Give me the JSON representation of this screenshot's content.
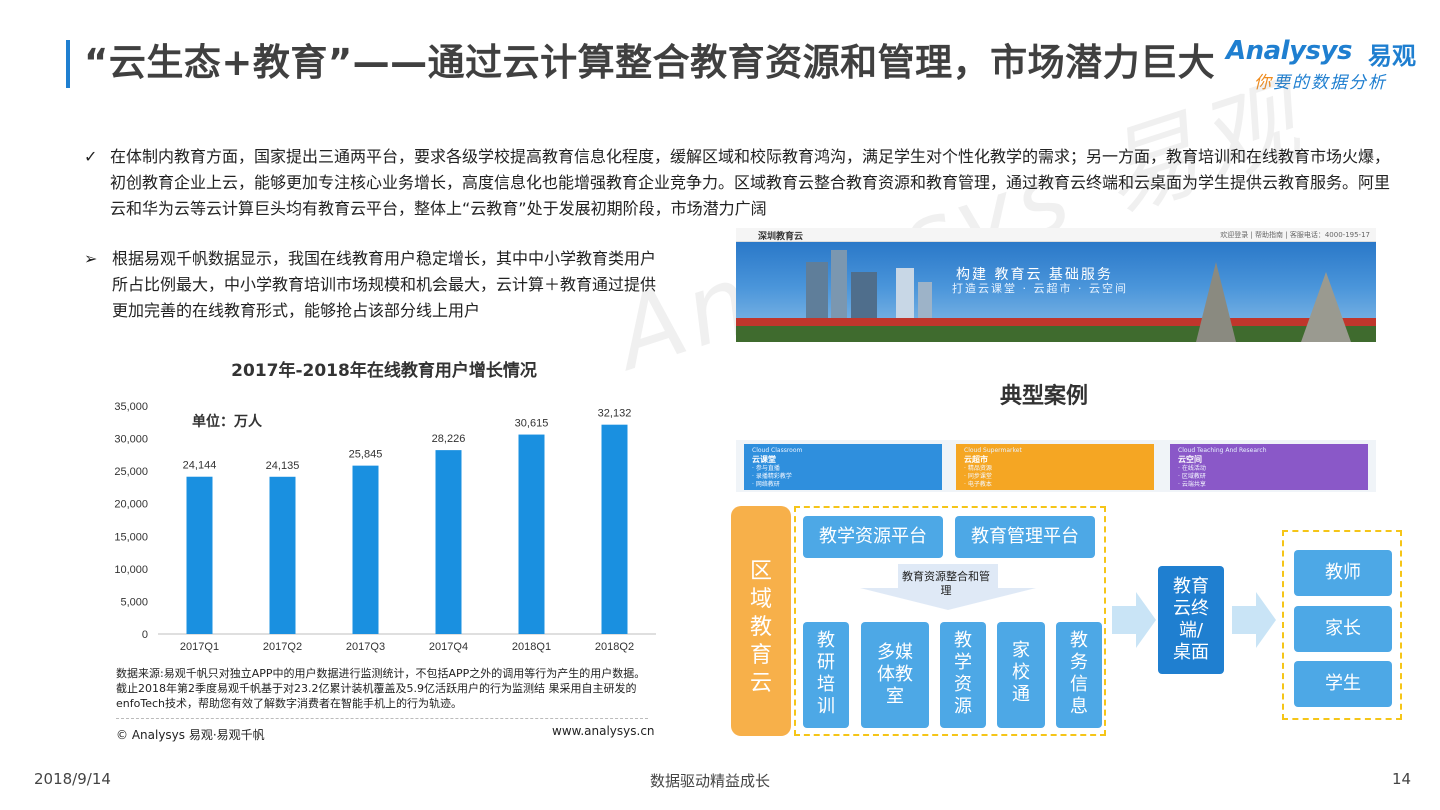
{
  "header": {
    "title": "“云生态+教育”——通过云计算整合教育资源和管理，市场潜力巨大",
    "logo_en": "Analysys",
    "logo_cn": "易观",
    "logo_tagline_first": "你",
    "logo_tagline_rest": "要的数据分析"
  },
  "intro": {
    "mark": "✓",
    "text": "在体制内教育方面，国家提出三通两平台，要求各级学校提高教育信息化程度，缓解区域和校际教育鸿沟，满足学生对个性化教学的需求；另一方面，教育培训和在线教育市场火爆，初创教育企业上云，能够更加专注核心业务增长，高度信息化也能增强教育企业竞争力。区域教育云整合教育资源和教育管理，通过教育云终端和云桌面为学生提供云教育服务。阿里云和华为云等云计算巨头均有教育云平台，整体上“云教育”处于发展初期阶段，市场潜力广阔"
  },
  "bullet": {
    "mark": "➢",
    "text": "根据易观千帆数据显示，我国在线教育用户稳定增长，其中中小学教育类用户所占比例最大，中小学教育培训市场规模和机会最大，云计算＋教育通过提供更加完善的在线教育形式，能够抢占该部分线上用户"
  },
  "chart_data": {
    "type": "bar",
    "title": "2017年-2018年在线教育用户增长情况",
    "unit_label": "单位：万人",
    "categories": [
      "2017Q1",
      "2017Q2",
      "2017Q3",
      "2017Q4",
      "2018Q1",
      "2018Q2"
    ],
    "values": [
      24144,
      24135,
      25845,
      28226,
      30615,
      32132
    ],
    "value_labels": [
      "24,144",
      "24,135",
      "25,845",
      "28,226",
      "30,615",
      "32,132"
    ],
    "yticks": [
      "0",
      "5,000",
      "10,000",
      "15,000",
      "20,000",
      "25,000",
      "30,000",
      "35,000"
    ],
    "ylim": [
      0,
      35000
    ],
    "bar_color": "#1a90e0",
    "grid": false
  },
  "source": {
    "text": "数据来源:易观千帆只对独立APP中的用户数据进行监测统计，不包括APP之外的调用等行为产生的用户数据。截止2018年第2季度易观千帆基于对23.2亿累计装机覆盖及5.9亿活跃用户的行为监测结 果采用自主研发的enfoTech技术，帮助您有效了解数字消费者在智能手机上的行为轨迹。",
    "copyright": "© Analysys 易观·易观千帆",
    "site": "www.analysys.cn"
  },
  "screenshot": {
    "brand": "深圳教育云",
    "links": "欢迎登录 | 帮助指南 | 客服电话：4000-195-17",
    "slogan": "构建 教育云 基础服务",
    "slogan2": "打造云课堂 · 云超市 · 云空间",
    "cards": [
      {
        "en": "Cloud Classroom",
        "cn": "云课堂",
        "items": [
          "· 参与直播",
          "· 录播精彩教学",
          "· 网络教研"
        ]
      },
      {
        "en": "Cloud Supermarket",
        "cn": "云超市",
        "items": [
          "· 精品资源",
          "· 同步课堂",
          "· 电子教本"
        ]
      },
      {
        "en": "Cloud Teaching And Research",
        "cn": "云空间",
        "items": [
          "· 在线活动",
          "· 区域教研",
          "· 云端共享"
        ]
      }
    ]
  },
  "case_title": "典型案例",
  "architecture": {
    "left_label": "区域教育云",
    "platforms": [
      "教学资源平台",
      "教育管理平台"
    ],
    "hint": "教育资源整合和管理",
    "modules": [
      "教研培训",
      "多媒体教室",
      "教学资源",
      "家校通",
      "教务信息"
    ],
    "terminal": "教育云终端/桌面",
    "users": [
      "教师",
      "家长",
      "学生"
    ],
    "box_color": "#4da8e6",
    "left_color": "#f7b04a",
    "terminal_color": "#1f7fd0",
    "dash_color": "#f5c518"
  },
  "footer": {
    "date": "2018/9/14",
    "center": "数据驱动精益成长",
    "page": "14"
  }
}
